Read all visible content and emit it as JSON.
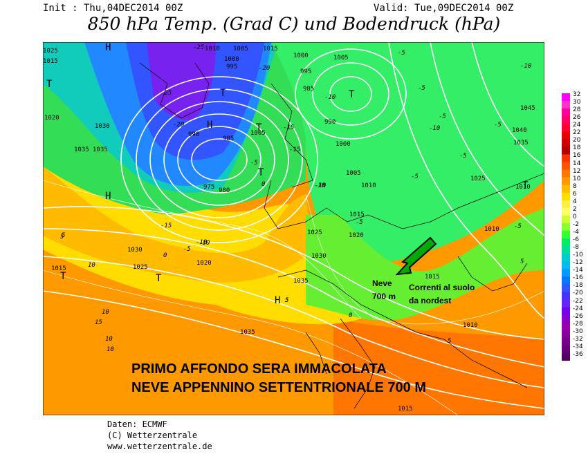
{
  "header": {
    "init": "Init : Thu,04DEC2014 00Z",
    "valid": "Valid: Tue,09DEC2014 00Z",
    "title": "850 hPa Temp. (Grad C) und Bodendruck (hPa)"
  },
  "footer": {
    "line1": "Daten: ECMWF",
    "line2": "(C) Wetterzentrale",
    "line3": "www.wetterzentrale.de"
  },
  "annotations": {
    "headline1": "PRIMO AFFONDO SERA IMMACOLATA",
    "headline2": "NEVE APPENNINO SETTENTRIONALE 700 M",
    "neve_line1": "Neve",
    "neve_line2": "700 m",
    "correnti_line1": "Correnti al suolo",
    "correnti_line2": "da nordest"
  },
  "pressure_labels": [
    "1025",
    "1015",
    "1020",
    "1030",
    "1035",
    "1010",
    "1005",
    "1000",
    "995",
    "990",
    "985",
    "980",
    "975",
    "1015",
    "1005",
    "1000",
    "995",
    "990",
    "985",
    "1005",
    "1000",
    "1005",
    "1010",
    "1015",
    "1020",
    "1025",
    "1030",
    "1035",
    "1040",
    "1045",
    "1035",
    "1030",
    "1025",
    "1020",
    "1015",
    "1010",
    "1035",
    "1035",
    "1025",
    "1010",
    "1015",
    "1010",
    "1015"
  ],
  "temperature_labels": [
    "-25",
    "-25",
    "-20",
    "-20",
    "-15",
    "-15",
    "-10",
    "-10",
    "-10",
    "-5",
    "-5",
    "-5",
    "-5",
    "-5",
    "-5",
    "-10",
    "-10",
    "0",
    "0",
    "5",
    "5",
    "5",
    "10",
    "10",
    "10",
    "10",
    "15",
    "-15",
    "-10",
    "-5",
    "-10",
    "-5",
    "-5",
    "5",
    "-5",
    "0",
    "5",
    "5"
  ],
  "pressure_centers": [
    "H",
    "H",
    "H",
    "H",
    "T",
    "T",
    "T",
    "T",
    "T",
    "T",
    "T",
    "T"
  ],
  "colorbar": {
    "labels": [
      "32",
      "30",
      "28",
      "26",
      "24",
      "22",
      "20",
      "18",
      "16",
      "14",
      "12",
      "10",
      "8",
      "6",
      "4",
      "2",
      "0",
      "-2",
      "-4",
      "-6",
      "-8",
      "-10",
      "-12",
      "-14",
      "-16",
      "-18",
      "-20",
      "-22",
      "-24",
      "-26",
      "-28",
      "-30",
      "-32",
      "-34",
      "-36"
    ],
    "colors": [
      "#ff00ff",
      "#ff33cc",
      "#ff0099",
      "#ff0066",
      "#ff0033",
      "#e60000",
      "#cc0000",
      "#b30000",
      "#ff3300",
      "#ff5500",
      "#ff7700",
      "#ff9900",
      "#ffbb00",
      "#ffdd00",
      "#ffee44",
      "#ffff66",
      "#ccff33",
      "#88ff33",
      "#33ff33",
      "#00ee66",
      "#00dd99",
      "#00cccc",
      "#00bbee",
      "#0099ff",
      "#0077ff",
      "#3355ff",
      "#4433ff",
      "#6622ff",
      "#7700ee",
      "#8800cc",
      "#9900aa",
      "#880099",
      "#770088",
      "#660077",
      "#550066"
    ]
  },
  "colors": {
    "arrow_fill": "#00aa00",
    "map_text": "#000000",
    "isobar": "#ffffff"
  }
}
